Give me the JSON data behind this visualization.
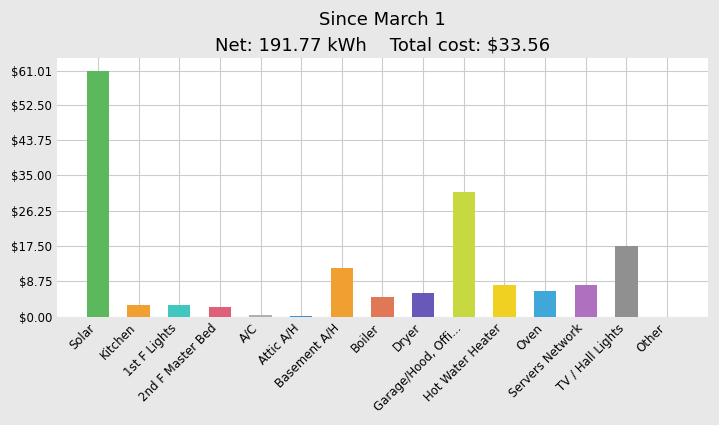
{
  "title": "Since March 1",
  "subtitle": "Net: 191.77 kWh    Total cost: $33.56",
  "categories": [
    "Solar",
    "Kitchen",
    "1st F Lights",
    "2nd F Master Bed",
    "A/C",
    "Attic A/H",
    "Basement A/H",
    "Boiler",
    "Dryer",
    "Garage/Hood, Offi...",
    "Hot Water Heater",
    "Oven",
    "Servers Network",
    "TV / Hall Lights",
    "Other"
  ],
  "values": [
    61.01,
    2.8,
    2.9,
    2.4,
    0.55,
    0.3,
    12.0,
    4.8,
    5.8,
    31.0,
    7.8,
    6.4,
    7.9,
    17.5,
    0.0
  ],
  "bar_colors": [
    "#5cb85c",
    "#f0a030",
    "#40c8c0",
    "#e0607a",
    "#b0b0b0",
    "#4090d0",
    "#f0a030",
    "#e07858",
    "#6858b8",
    "#c8d840",
    "#f0d020",
    "#40a8d8",
    "#b070c0",
    "#909090",
    "#909090"
  ],
  "yticks": [
    0.0,
    8.75,
    17.5,
    26.25,
    35.0,
    43.75,
    52.5,
    61.01
  ],
  "ytick_labels": [
    "$0.00",
    "$8.75",
    "$17.50",
    "$26.25",
    "$35.00",
    "$43.75",
    "$52.50",
    "$61.01"
  ],
  "ylim": [
    0,
    64
  ],
  "background_color": "#e8e8e8",
  "plot_bg_color": "#ffffff",
  "title_fontsize": 13,
  "tick_fontsize": 8.5
}
